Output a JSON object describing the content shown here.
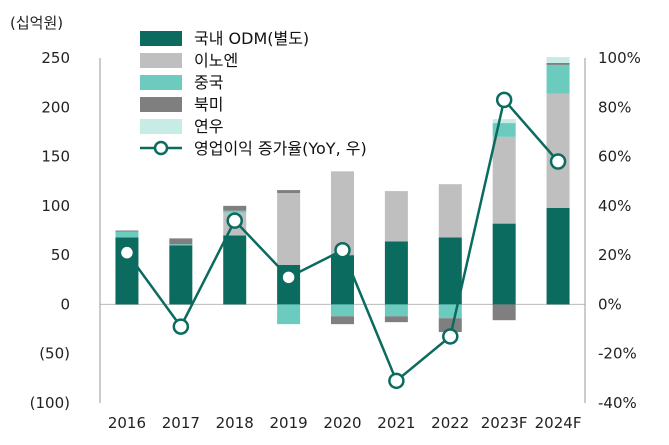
{
  "chart_data": {
    "type": "bar",
    "unit_label": "(십억원)",
    "categories": [
      "2016",
      "2017",
      "2018",
      "2019",
      "2020",
      "2021",
      "2022",
      "2023F",
      "2024F"
    ],
    "stacked": true,
    "left_axis": {
      "min": -100,
      "max": 250,
      "ticks": [
        250,
        200,
        150,
        100,
        50,
        0,
        -50,
        -100
      ],
      "tick_labels": [
        "250",
        "200",
        "150",
        "100",
        "50",
        "0",
        "(50)",
        "(100)"
      ]
    },
    "right_axis": {
      "min": -0.4,
      "max": 1.0,
      "ticks": [
        1.0,
        0.8,
        0.6,
        0.4,
        0.2,
        0,
        -0.2,
        -0.4
      ],
      "tick_labels": [
        "100%",
        "80%",
        "60%",
        "40%",
        "20%",
        "0%",
        "-20%",
        "-40%"
      ]
    },
    "series": [
      {
        "name": "국내 ODM(별도)",
        "color": "#0b6b5f",
        "values": [
          68,
          60,
          70,
          40,
          50,
          64,
          68,
          82,
          98
        ]
      },
      {
        "name": "이노엔",
        "color": "#bfbfbf",
        "values": [
          0,
          0,
          23,
          73,
          85,
          51,
          54,
          88,
          116
        ]
      },
      {
        "name": "중국",
        "color": "#6ccbbf",
        "values": [
          6,
          1,
          2,
          -20,
          -12,
          -12,
          -14,
          14,
          29
        ]
      },
      {
        "name": "북미",
        "color": "#7f7f7f",
        "values": [
          1,
          6,
          5,
          3,
          -8,
          -6,
          -14,
          -16,
          2
        ]
      },
      {
        "name": "연우",
        "color": "#c7ece6",
        "values": [
          0,
          0,
          0,
          0,
          0,
          0,
          0,
          4,
          6
        ]
      }
    ],
    "line": {
      "name": "영업이익 증가율(YoY, 우)",
      "color": "#0b6b5f",
      "axis": "right",
      "values": [
        0.21,
        -0.09,
        0.34,
        0.11,
        0.22,
        -0.31,
        -0.13,
        0.83,
        0.58
      ]
    }
  }
}
